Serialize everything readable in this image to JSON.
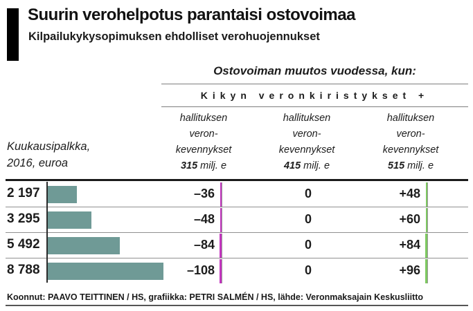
{
  "header": {
    "title": "Suurin verohelpotus parantaisi ostovoimaa",
    "subtitle": "Kilpailukykysopimuksen ehdolliset verohuojennukset"
  },
  "table": {
    "group_heading": "Ostovoiman muutos vuodessa, kun:",
    "sub_heading": "Kikyn veronkiristykset +",
    "row_axis_label_line1": "Kuukausipalkka,",
    "row_axis_label_line2": "2016, euroa",
    "columns": [
      {
        "lines": [
          "hallituksen",
          "veron-",
          "kevennykset"
        ],
        "amount": "315",
        "unit": "milj. e"
      },
      {
        "lines": [
          "hallituksen",
          "veron-",
          "kevennykset"
        ],
        "amount": "415",
        "unit": "milj. e"
      },
      {
        "lines": [
          "hallituksen",
          "veron-",
          "kevennykset"
        ],
        "amount": "515",
        "unit": "milj. e"
      }
    ]
  },
  "chart_data": {
    "type": "table",
    "title": "Suurin verohelpotus parantaisi ostovoimaa",
    "subtitle": "Kilpailukykysopimuksen ehdolliset verohuojennukset",
    "group_header": "Ostovoiman muutos vuodessa, kun:",
    "sub_header": "Kikyn veronkiristykset +",
    "row_axis_label": "Kuukausipalkka, 2016, euroa",
    "categories": [
      2197,
      3295,
      5492,
      8788
    ],
    "category_labels": [
      "2 197",
      "3 295",
      "5 492",
      "8 788"
    ],
    "bar_series": {
      "name": "Kuukausipalkka 2016 euroa",
      "values": [
        2197,
        3295,
        5492,
        8788
      ]
    },
    "series": [
      {
        "name": "hallituksen veronkevennykset 315 milj. e",
        "values": [
          -36,
          -48,
          -84,
          -108
        ],
        "display": [
          "–36",
          "–48",
          "–84",
          "–108"
        ]
      },
      {
        "name": "hallituksen veronkevennykset 415 milj. e",
        "values": [
          0,
          0,
          0,
          0
        ],
        "display": [
          "0",
          "0",
          "0",
          "0"
        ]
      },
      {
        "name": "hallituksen veronkevennykset 515 milj. e",
        "values": [
          48,
          60,
          84,
          96
        ],
        "display": [
          "+48",
          "+60",
          "+84",
          "+96"
        ]
      }
    ],
    "legend_position": "top",
    "grid": "horizontal-row-separators"
  },
  "colors": {
    "bar": "#6f9a96",
    "negative_marker": "#c234be",
    "positive_marker": "#7dc860",
    "accent": "#000000"
  },
  "footer": {
    "credit": "Koonnut: PAAVO TEITTINEN / HS, grafiikka: PETRI SALMÉN / HS, lähde: Veronmaksajain Keskusliitto"
  }
}
